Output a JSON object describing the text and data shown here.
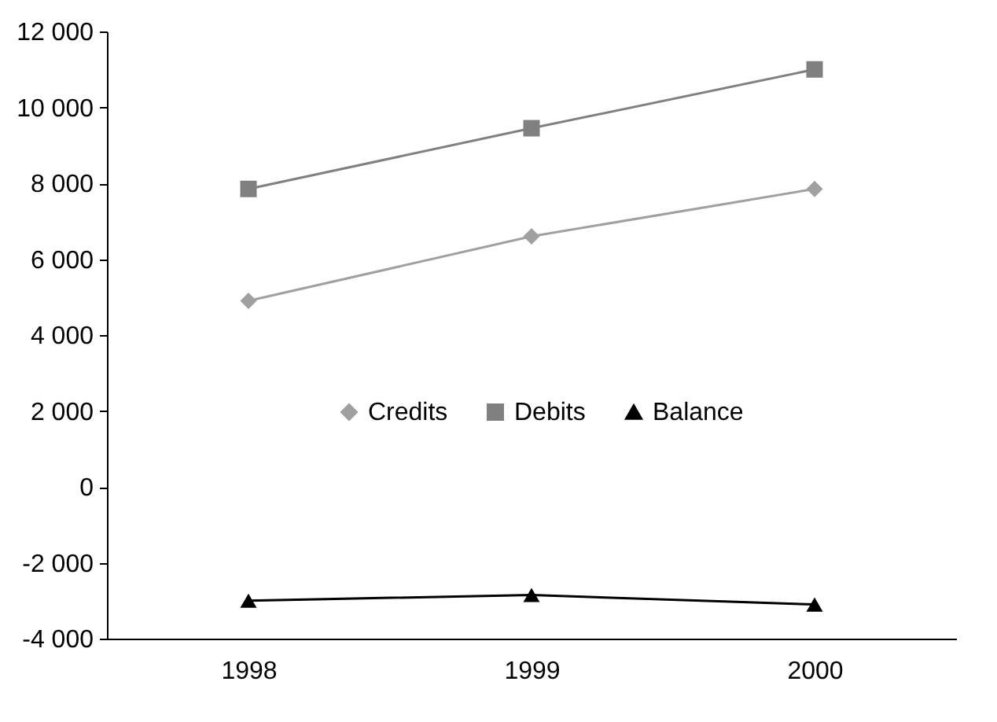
{
  "chart_data": {
    "type": "line",
    "categories": [
      "1998",
      "1999",
      "2000"
    ],
    "series": [
      {
        "name": "Credits",
        "color": "#a0a0a0",
        "marker": "diamond",
        "values": [
          4900,
          6600,
          7850
        ]
      },
      {
        "name": "Debits",
        "color": "#808080",
        "marker": "square",
        "values": [
          7850,
          9450,
          11000
        ]
      },
      {
        "name": "Balance",
        "color": "#000000",
        "marker": "triangle",
        "values": [
          -3000,
          -2850,
          -3100
        ]
      }
    ],
    "ylim": [
      -4000,
      12000
    ],
    "yticks": [
      {
        "value": -4000,
        "label": "-4 000"
      },
      {
        "value": -2000,
        "label": "-2 000"
      },
      0,
      {
        "value": 2000,
        "label": "2 000"
      },
      {
        "value": 4000,
        "label": "4 000"
      },
      {
        "value": 6000,
        "label": "6 000"
      },
      {
        "value": 8000,
        "label": "8 000"
      },
      {
        "value": 10000,
        "label": "10 000"
      },
      {
        "value": 12000,
        "label": "12 000"
      }
    ],
    "grid": false,
    "legend": "center",
    "line_style": "solid"
  }
}
